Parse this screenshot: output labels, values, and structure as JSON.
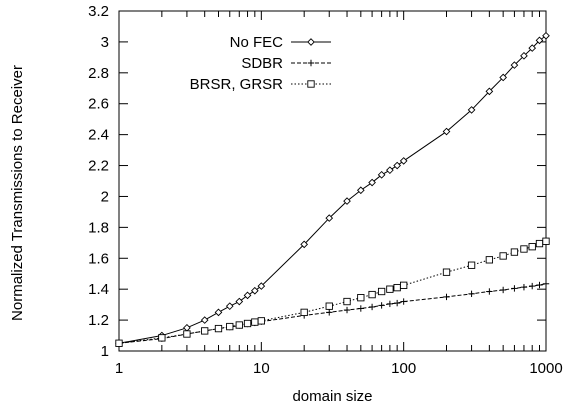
{
  "chart_data": {
    "type": "line",
    "title": "",
    "xlabel": "domain size",
    "ylabel": "Normalized Transmissions to Receiver",
    "xscale": "log",
    "xlim": [
      1,
      1000
    ],
    "ylim": [
      1,
      3.2
    ],
    "xticks": [
      1,
      10,
      100,
      1000
    ],
    "xtick_labels": [
      "1",
      "10",
      "100",
      "1000"
    ],
    "yticks": [
      1,
      1.2,
      1.4,
      1.6,
      1.8,
      2,
      2.2,
      2.4,
      2.6,
      2.8,
      3,
      3.2
    ],
    "ytick_labels": [
      "1",
      "1.2",
      "1.4",
      "1.6",
      "1.8",
      "2",
      "2.2",
      "2.4",
      "2.6",
      "2.8",
      "3",
      "3.2"
    ],
    "grid": false,
    "legend_position": "top-right",
    "series": [
      {
        "name": "No FEC",
        "line_style": "solid",
        "marker": "diamond",
        "color": "#000000",
        "x": [
          1,
          2,
          3,
          4,
          5,
          6,
          7,
          8,
          9,
          10,
          20,
          30,
          40,
          50,
          60,
          70,
          80,
          90,
          100,
          200,
          300,
          400,
          500,
          600,
          700,
          800,
          900,
          1000
        ],
        "y": [
          1.05,
          1.1,
          1.15,
          1.2,
          1.25,
          1.29,
          1.32,
          1.36,
          1.39,
          1.42,
          1.69,
          1.86,
          1.97,
          2.04,
          2.09,
          2.14,
          2.17,
          2.2,
          2.23,
          2.42,
          2.56,
          2.68,
          2.77,
          2.85,
          2.91,
          2.96,
          3.01,
          3.04
        ]
      },
      {
        "name": "SDBR",
        "line_style": "dashed",
        "marker": "plus",
        "color": "#000000",
        "x": [
          1,
          2,
          3,
          4,
          5,
          6,
          7,
          8,
          9,
          10,
          20,
          30,
          40,
          50,
          60,
          70,
          80,
          90,
          100,
          200,
          300,
          400,
          500,
          600,
          700,
          800,
          900,
          1000
        ],
        "y": [
          1.05,
          1.08,
          1.11,
          1.13,
          1.145,
          1.155,
          1.165,
          1.175,
          1.182,
          1.19,
          1.23,
          1.25,
          1.265,
          1.275,
          1.285,
          1.295,
          1.305,
          1.31,
          1.32,
          1.35,
          1.37,
          1.385,
          1.395,
          1.405,
          1.413,
          1.42,
          1.427,
          1.435
        ]
      },
      {
        "name": "BRSR, GRSR",
        "line_style": "dotted",
        "marker": "square",
        "color": "#000000",
        "x": [
          1,
          2,
          3,
          4,
          5,
          6,
          7,
          8,
          9,
          10,
          20,
          30,
          40,
          50,
          60,
          70,
          80,
          90,
          100,
          200,
          300,
          400,
          500,
          600,
          700,
          800,
          900,
          1000
        ],
        "y": [
          1.05,
          1.085,
          1.11,
          1.13,
          1.145,
          1.158,
          1.168,
          1.178,
          1.187,
          1.195,
          1.25,
          1.29,
          1.32,
          1.345,
          1.365,
          1.385,
          1.4,
          1.41,
          1.425,
          1.51,
          1.555,
          1.59,
          1.615,
          1.64,
          1.66,
          1.675,
          1.695,
          1.71
        ]
      }
    ]
  }
}
